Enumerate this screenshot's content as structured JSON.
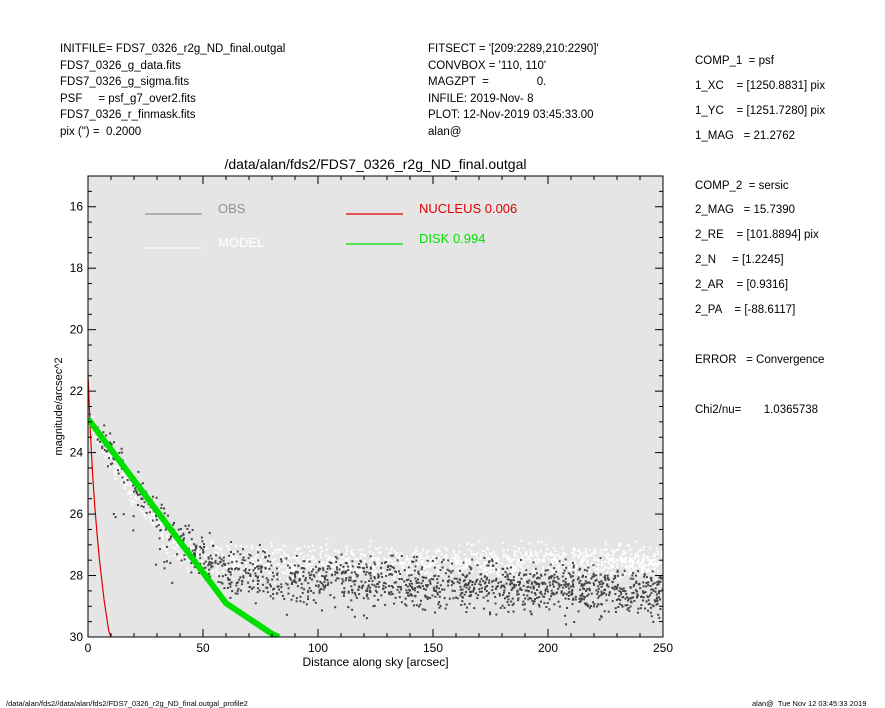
{
  "header_left": [
    "INITFILE= FDS7_0326_r2g_ND_final.outgal",
    "FDS7_0326_g_data.fits",
    "FDS7_0326_g_sigma.fits",
    "PSF     = psf_g7_over2.fits",
    "FDS7_0326_r_finmask.fits",
    "pix (\") =  0.2000"
  ],
  "header_mid": [
    "FITSECT = '[209:2289,210:2290]'",
    "CONVBOX = '110, 110'",
    "MAGZPT  =               0.",
    "INFILE: 2019-Nov- 8",
    "PLOT: 12-Nov-2019 03:45:33.00",
    "alan@"
  ],
  "header_right": [
    "COMP_1  = psf",
    "1_XC    = [1250.8831] pix",
    "1_YC    = [1251.7280] pix",
    "1_MAG   = 21.2762",
    "",
    "COMP_2  = sersic",
    "2_MAG   = 15.7390",
    "2_RE    = [101.8894] pix",
    "2_N     = [1.2245]",
    "2_AR    = [0.9316]",
    "2_PA    = [-88.6117]",
    "",
    "ERROR   = Convergence",
    "",
    "Chi2/nu=       1.0365738"
  ],
  "footer_left": "/data/alan/fds2//data/alan/fds2/FDS7_0326_r2g_ND_final.outgal_profile2",
  "footer_right": "alan@  Tue Nov 12 03:45:33 2019",
  "colors": {
    "plot_bg": "#e5e5e5",
    "obs": "#444444",
    "obs_legend": "#909090",
    "model": "#ffffff",
    "nucleus": "#e00000",
    "disk": "#00e000"
  },
  "chart_data": {
    "type": "scatter",
    "title": "/data/alan/fds2/FDS7_0326_r2g_ND_final.outgal",
    "xlabel": "Distance along sky [arcsec]",
    "ylabel": "magnitude/arcsec^2",
    "xlim": [
      0,
      250
    ],
    "ylim": [
      30,
      15
    ],
    "y_inverted": true,
    "xticks": [
      0,
      50,
      100,
      150,
      200,
      250
    ],
    "yticks": [
      16,
      18,
      20,
      22,
      24,
      26,
      28,
      30
    ],
    "legend": [
      {
        "label": "OBS",
        "value": "",
        "color": "#909090"
      },
      {
        "label": "MODEL",
        "value": "",
        "color": "#ffffff"
      },
      {
        "label": "NUCLEUS",
        "value": "0.006",
        "color": "#e00000"
      },
      {
        "label": "DISK",
        "value": "0.994",
        "color": "#00e000"
      }
    ],
    "series": [
      {
        "name": "OBS",
        "kind": "points",
        "x": [
          0.5,
          3,
          6,
          10,
          15,
          20,
          25,
          30,
          40,
          50,
          60,
          80,
          100,
          150,
          200,
          250
        ],
        "y": [
          22.9,
          23.3,
          23.6,
          24.0,
          24.5,
          25.0,
          25.5,
          26.0,
          26.8,
          27.4,
          27.8,
          28.1,
          28.2,
          28.3,
          28.4,
          28.6
        ]
      },
      {
        "name": "MODEL",
        "kind": "points",
        "x": [
          0,
          10,
          20,
          40,
          60,
          80,
          100,
          150,
          200,
          250
        ],
        "y": [
          22.9,
          24.2,
          25.4,
          27.2,
          27.5,
          27.6,
          27.6,
          27.6,
          27.6,
          27.6
        ]
      },
      {
        "name": "NUCLEUS",
        "kind": "line",
        "x": [
          0,
          0.5,
          1,
          2,
          3,
          4,
          5,
          7,
          9,
          10
        ],
        "y": [
          21.5,
          22.4,
          23.3,
          24.7,
          25.8,
          26.7,
          27.5,
          28.8,
          29.8,
          30.0
        ]
      },
      {
        "name": "DISK",
        "kind": "line",
        "x": [
          0,
          20,
          40,
          60,
          80,
          83
        ],
        "y": [
          22.9,
          24.9,
          26.9,
          28.9,
          29.9,
          30.0
        ]
      }
    ]
  }
}
